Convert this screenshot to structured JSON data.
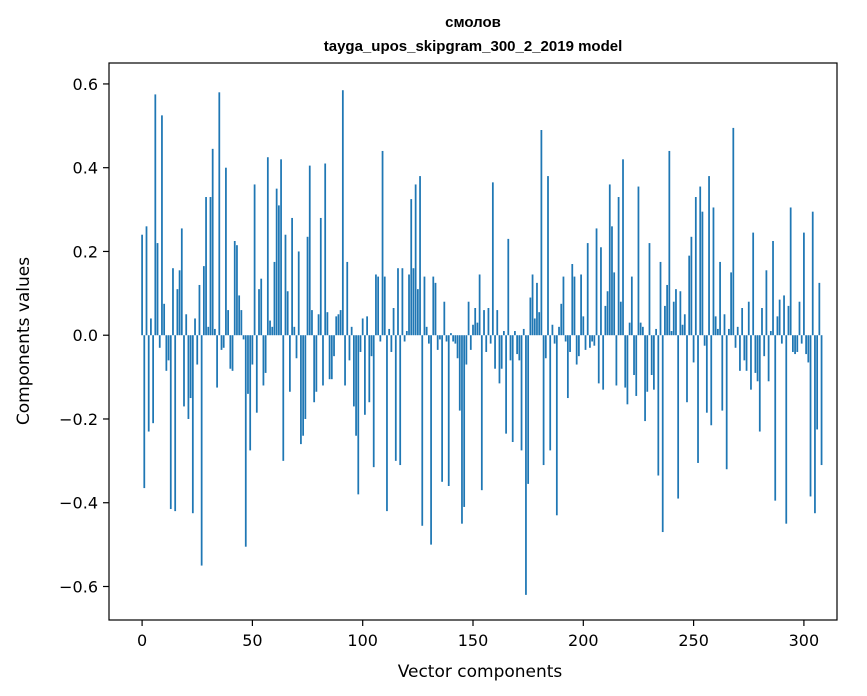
{
  "chart_data": {
    "type": "bar",
    "title": "смолов",
    "subtitle": "tayga_upos_skipgram_300_2_2019 model",
    "xlabel": "Vector components",
    "ylabel": "Components values",
    "xlim": [
      -15,
      315
    ],
    "ylim": [
      -0.68,
      0.65
    ],
    "xticks": [
      0,
      50,
      100,
      150,
      200,
      250,
      300
    ],
    "yticks": [
      -0.6,
      -0.4,
      -0.2,
      0.0,
      0.2,
      0.4,
      0.6
    ],
    "ytick_labels": [
      "−0.6",
      "−0.4",
      "−0.2",
      "0.0",
      "0.2",
      "0.4",
      "0.6"
    ],
    "xtick_labels": [
      "0",
      "50",
      "100",
      "150",
      "200",
      "250",
      "300"
    ],
    "grid": false,
    "bar_color": "#1f77b4",
    "values": [
      0.24,
      -0.365,
      0.26,
      -0.23,
      0.04,
      -0.21,
      0.575,
      0.22,
      -0.03,
      0.525,
      0.075,
      -0.085,
      -0.06,
      -0.415,
      0.16,
      -0.42,
      0.11,
      0.155,
      0.255,
      -0.17,
      0.05,
      -0.2,
      -0.15,
      -0.425,
      0.04,
      -0.07,
      0.12,
      -0.55,
      0.165,
      0.33,
      0.02,
      0.33,
      0.445,
      0.015,
      -0.125,
      0.58,
      -0.035,
      -0.03,
      0.4,
      0.06,
      -0.08,
      -0.085,
      0.225,
      0.215,
      0.095,
      0.06,
      -0.01,
      -0.505,
      -0.14,
      -0.275,
      -0.07,
      0.36,
      -0.185,
      0.11,
      0.135,
      -0.12,
      -0.09,
      0.425,
      0.035,
      0.02,
      0.175,
      0.35,
      0.31,
      0.42,
      -0.3,
      0.24,
      0.105,
      -0.135,
      0.28,
      0.02,
      -0.055,
      0.2,
      -0.26,
      -0.24,
      -0.2,
      0.235,
      0.405,
      0.06,
      -0.16,
      -0.135,
      0.05,
      0.28,
      -0.12,
      0.41,
      0.055,
      -0.105,
      -0.105,
      -0.05,
      0.045,
      0.05,
      0.06,
      0.585,
      -0.12,
      0.175,
      -0.06,
      0.02,
      -0.17,
      -0.24,
      -0.38,
      -0.04,
      0.04,
      -0.19,
      0.045,
      -0.16,
      -0.05,
      -0.315,
      0.145,
      0.14,
      -0.015,
      0.44,
      0.14,
      -0.42,
      0.015,
      -0.04,
      0.065,
      -0.3,
      0.16,
      -0.31,
      0.16,
      -0.015,
      0.01,
      0.145,
      0.325,
      0.16,
      0.36,
      0.11,
      0.38,
      -0.455,
      0.14,
      0.02,
      -0.02,
      -0.5,
      0.14,
      0.125,
      -0.035,
      -0.01,
      -0.35,
      0.08,
      -0.015,
      -0.36,
      0.005,
      -0.015,
      -0.02,
      -0.055,
      -0.18,
      -0.45,
      -0.41,
      -0.07,
      0.08,
      -0.035,
      0.025,
      0.065,
      0.03,
      0.145,
      -0.37,
      0.06,
      -0.04,
      0.065,
      -0.02,
      0.365,
      -0.08,
      0.06,
      -0.115,
      -0.08,
      0.01,
      -0.235,
      0.23,
      -0.06,
      -0.255,
      0.01,
      -0.045,
      -0.06,
      -0.275,
      0.015,
      -0.62,
      -0.355,
      0.09,
      0.145,
      0.04,
      0.125,
      0.055,
      0.49,
      -0.31,
      -0.055,
      0.38,
      -0.275,
      0.025,
      -0.02,
      -0.43,
      0.02,
      0.075,
      0.14,
      -0.015,
      -0.15,
      -0.04,
      0.17,
      0.14,
      -0.07,
      -0.05,
      0.145,
      0.045,
      -0.035,
      0.22,
      -0.03,
      -0.015,
      -0.025,
      0.255,
      -0.115,
      0.21,
      -0.13,
      0.07,
      0.105,
      0.36,
      0.26,
      0.15,
      -0.12,
      0.33,
      0.08,
      0.42,
      -0.125,
      -0.165,
      0.03,
      0.14,
      -0.095,
      -0.145,
      0.355,
      0.03,
      0.02,
      -0.205,
      -0.135,
      0.22,
      -0.095,
      -0.13,
      0.015,
      -0.335,
      0.175,
      -0.47,
      0.07,
      0.12,
      0.44,
      0.01,
      0.08,
      0.11,
      -0.39,
      0.105,
      0.025,
      0.05,
      -0.16,
      0.19,
      0.235,
      -0.065,
      0.33,
      -0.305,
      0.355,
      0.295,
      -0.025,
      -0.185,
      0.38,
      -0.215,
      0.305,
      0.045,
      0.015,
      0.175,
      -0.18,
      0.05,
      -0.32,
      0.015,
      0.15,
      0.495,
      -0.03,
      0.02,
      -0.085,
      0.065,
      -0.06,
      -0.085,
      0.08,
      -0.13,
      0.245,
      -0.09,
      -0.11,
      -0.23,
      0.065,
      -0.05,
      0.155,
      -0.11,
      0.01,
      0.225,
      -0.395,
      0.045,
      0.085,
      -0.02,
      0.095,
      -0.45,
      0.07,
      0.305,
      -0.04,
      -0.045,
      -0.04,
      0.08,
      -0.02,
      0.245,
      -0.045,
      -0.065,
      -0.385,
      0.295,
      -0.425,
      -0.225,
      0.125,
      -0.31
    ]
  }
}
